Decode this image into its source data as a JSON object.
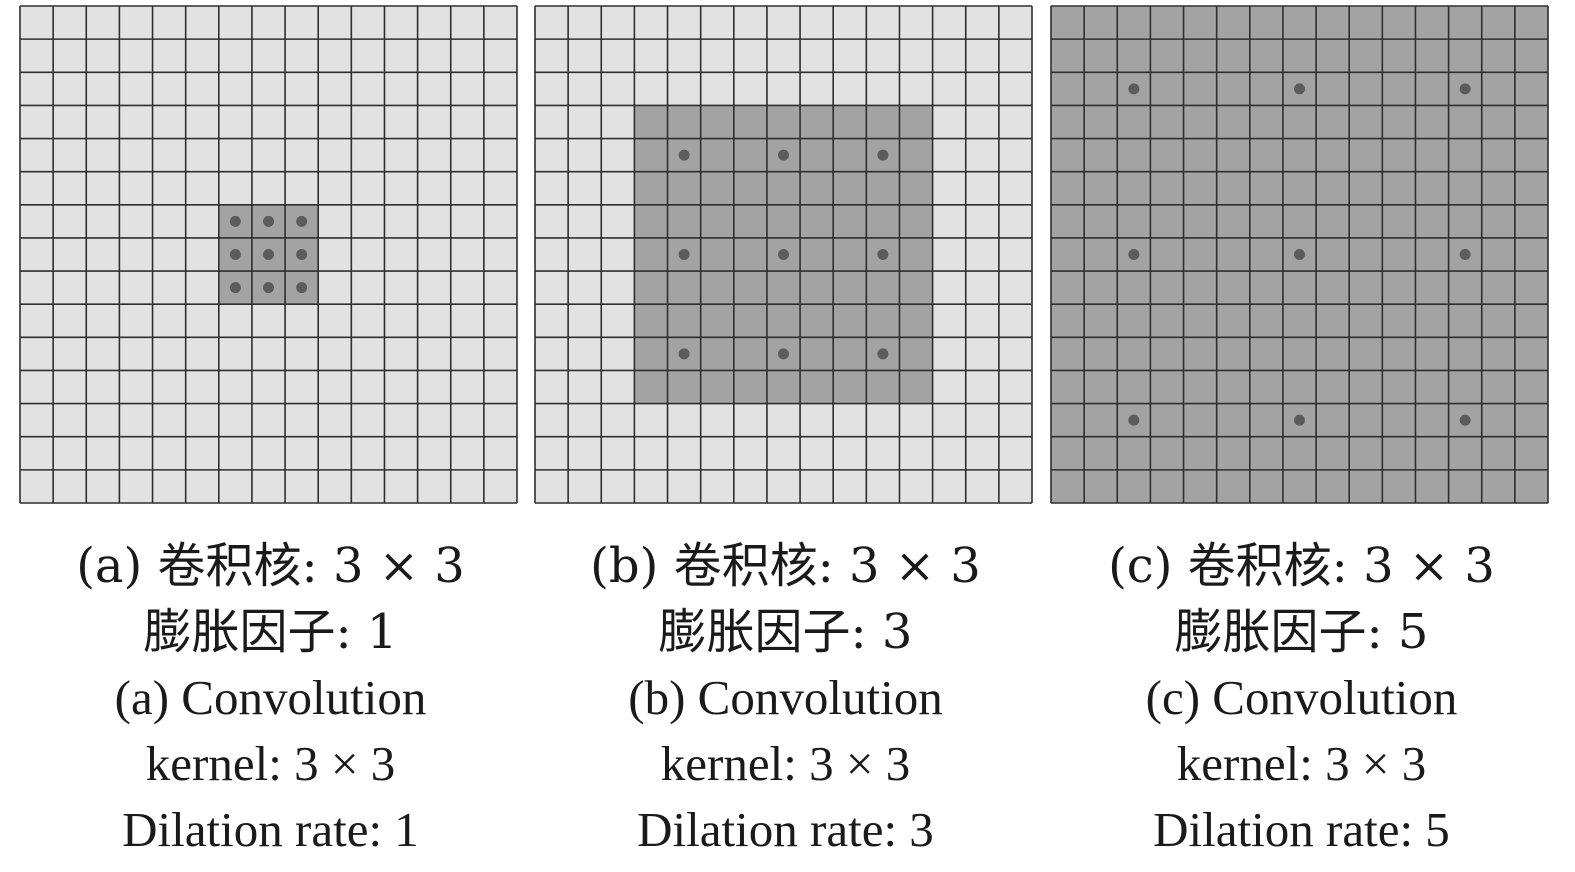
{
  "grid_cells": 15,
  "colors": {
    "background_cell": "#e2e2e2",
    "receptive_field": "#a3a3a3",
    "grid_line": "#2f2f2f",
    "kernel_dot": "#5c5c5c"
  },
  "panels": [
    {
      "kernel_size": 3,
      "dilation": 1,
      "caption_zh_1": "(a) 卷积核: 3 × 3",
      "caption_zh_2": "膨胀因子: 1",
      "caption_en_1": "(a) Convolution",
      "caption_en_2": "kernel: 3 × 3",
      "caption_en_3": "Dilation rate: 1"
    },
    {
      "kernel_size": 3,
      "dilation": 3,
      "caption_zh_1": "(b) 卷积核: 3 × 3",
      "caption_zh_2": "膨胀因子: 3",
      "caption_en_1": "(b) Convolution",
      "caption_en_2": "kernel: 3 × 3",
      "caption_en_3": "Dilation rate: 3"
    },
    {
      "kernel_size": 3,
      "dilation": 5,
      "caption_zh_1": "(c) 卷积核: 3 × 3",
      "caption_zh_2": "膨胀因子: 5",
      "caption_en_1": "(c) Convolution",
      "caption_en_2": "kernel: 3 × 3",
      "caption_en_3": "Dilation rate: 5"
    }
  ]
}
